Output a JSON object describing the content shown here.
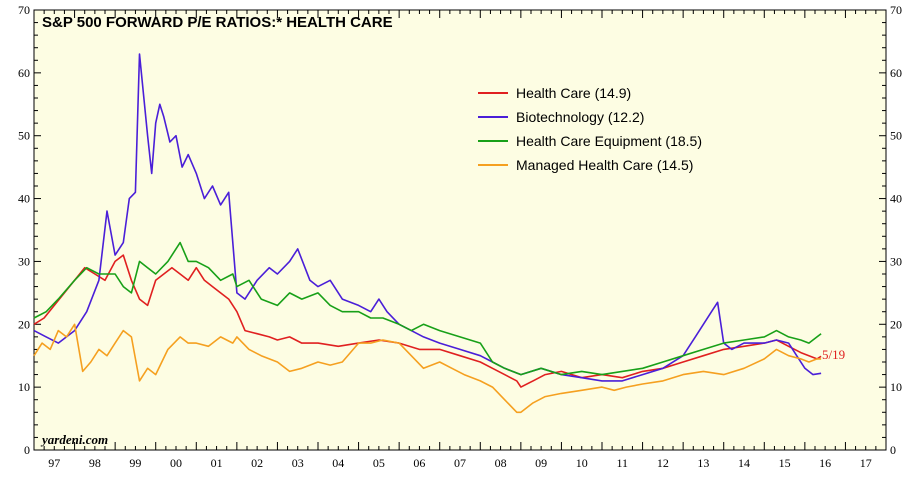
{
  "chart_data": {
    "type": "line",
    "title": "S&P 500 FORWARD P/E RATIOS:* HEALTH CARE",
    "source": "yardeni.com",
    "annotation": "5/19",
    "ylim": [
      0,
      70
    ],
    "yticks": [
      0,
      10,
      20,
      30,
      40,
      50,
      60,
      70
    ],
    "xlim": [
      1997.0,
      2018.0
    ],
    "x_tick_labels": [
      "97",
      "98",
      "99",
      "00",
      "01",
      "02",
      "03",
      "04",
      "05",
      "06",
      "07",
      "08",
      "09",
      "10",
      "11",
      "12",
      "13",
      "14",
      "15",
      "16",
      "17"
    ],
    "legend_position": "upper-right",
    "colors": {
      "background": "#fdfde3",
      "health_care": "#e02020",
      "biotechnology": "#4a1fd8",
      "equipment": "#18a018",
      "managed": "#f5a020"
    },
    "series": [
      {
        "name": "Health Care (14.9)",
        "color": "#e02020",
        "x": [
          1997.0,
          1997.25,
          1997.5,
          1997.75,
          1998.0,
          1998.25,
          1998.5,
          1998.75,
          1999.0,
          1999.2,
          1999.4,
          1999.6,
          1999.8,
          2000.0,
          2000.2,
          2000.4,
          2000.6,
          2000.8,
          2001.0,
          2001.2,
          2001.4,
          2001.6,
          2001.8,
          2002.0,
          2002.2,
          2002.5,
          2002.8,
          2003.0,
          2003.3,
          2003.6,
          2004.0,
          2004.5,
          2005.0,
          2005.5,
          2006.0,
          2006.5,
          2007.0,
          2007.5,
          2008.0,
          2008.3,
          2008.6,
          2008.9,
          2009.0,
          2009.3,
          2009.6,
          2010.0,
          2010.5,
          2011.0,
          2011.5,
          2012.0,
          2012.5,
          2013.0,
          2013.5,
          2014.0,
          2014.5,
          2015.0,
          2015.3,
          2015.6,
          2015.9,
          2016.1,
          2016.3,
          2016.4
        ],
        "y": [
          20,
          21,
          23,
          25,
          27,
          29,
          28,
          27,
          30,
          31,
          27,
          24,
          23,
          27,
          28,
          29,
          28,
          27,
          29,
          27,
          26,
          25,
          24,
          22,
          19,
          18.5,
          18,
          17.5,
          18,
          17,
          17,
          16.5,
          17,
          17.5,
          17,
          16,
          16,
          15,
          14,
          13,
          12,
          11,
          10,
          11,
          12,
          12.5,
          11.5,
          12,
          11.5,
          12.5,
          13,
          14,
          15,
          16,
          16.5,
          17,
          17.5,
          16.5,
          15.5,
          15,
          14.5,
          14.9
        ]
      },
      {
        "name": "Biotechnology (12.2)",
        "color": "#4a1fd8",
        "x": [
          1997.0,
          1997.3,
          1997.6,
          1998.0,
          1998.3,
          1998.6,
          1998.8,
          1999.0,
          1999.2,
          1999.35,
          1999.5,
          1999.6,
          1999.8,
          1999.9,
          2000.0,
          2000.1,
          2000.2,
          2000.35,
          2000.5,
          2000.65,
          2000.8,
          2001.0,
          2001.2,
          2001.4,
          2001.6,
          2001.8,
          2002.0,
          2002.2,
          2002.5,
          2002.8,
          2003.0,
          2003.3,
          2003.5,
          2003.8,
          2004.0,
          2004.3,
          2004.6,
          2005.0,
          2005.3,
          2005.5,
          2005.7,
          2006.0,
          2006.3,
          2006.6,
          2007.0,
          2007.5,
          2008.0,
          2008.3,
          2008.6,
          2009.0,
          2009.5,
          2010.0,
          2010.5,
          2011.0,
          2011.5,
          2012.0,
          2012.5,
          2013.0,
          2013.3,
          2013.5,
          2013.7,
          2013.85,
          2014.0,
          2014.2,
          2014.5,
          2015.0,
          2015.3,
          2015.6,
          2015.8,
          2016.0,
          2016.2,
          2016.4
        ],
        "y": [
          19,
          18,
          17,
          19,
          22,
          27,
          38,
          31,
          33,
          40,
          41,
          63,
          50,
          44,
          52,
          55,
          53,
          49,
          50,
          45,
          47,
          44,
          40,
          42,
          39,
          41,
          25,
          24,
          27,
          29,
          28,
          30,
          32,
          27,
          26,
          27,
          24,
          23,
          22,
          24,
          22,
          20,
          19,
          18,
          17,
          16,
          15,
          14,
          13,
          12,
          13,
          12,
          11.5,
          11,
          11,
          12,
          13,
          15,
          18,
          20,
          22,
          23.5,
          17,
          16,
          17,
          17,
          17.5,
          17,
          15,
          13,
          12,
          12.2
        ]
      },
      {
        "name": "Health Care Equipment (18.5)",
        "color": "#18a018",
        "x": [
          1997.0,
          1997.3,
          1997.6,
          1998.0,
          1998.3,
          1998.6,
          1999.0,
          1999.2,
          1999.4,
          1999.6,
          1999.8,
          2000.0,
          2000.3,
          2000.6,
          2000.8,
          2001.0,
          2001.3,
          2001.6,
          2001.9,
          2002.0,
          2002.3,
          2002.6,
          2003.0,
          2003.3,
          2003.6,
          2004.0,
          2004.3,
          2004.6,
          2005.0,
          2005.3,
          2005.6,
          2006.0,
          2006.3,
          2006.6,
          2007.0,
          2007.5,
          2008.0,
          2008.3,
          2008.6,
          2009.0,
          2009.5,
          2010.0,
          2010.5,
          2011.0,
          2011.5,
          2012.0,
          2012.5,
          2013.0,
          2013.5,
          2014.0,
          2014.5,
          2015.0,
          2015.3,
          2015.6,
          2015.9,
          2016.1,
          2016.3,
          2016.4
        ],
        "y": [
          21,
          22,
          24,
          27,
          29,
          28,
          28,
          26,
          25,
          30,
          29,
          28,
          30,
          33,
          30,
          30,
          29,
          27,
          28,
          26,
          27,
          24,
          23,
          25,
          24,
          25,
          23,
          22,
          22,
          21,
          21,
          20,
          19,
          20,
          19,
          18,
          17,
          14,
          13,
          12,
          13,
          12,
          12.5,
          12,
          12.5,
          13,
          14,
          15,
          16,
          17,
          17.5,
          18,
          19,
          18,
          17.5,
          17,
          18,
          18.5
        ]
      },
      {
        "name": "Managed Health Care (14.5)",
        "color": "#f5a020",
        "x": [
          1997.0,
          1997.2,
          1997.4,
          1997.6,
          1997.8,
          1998.0,
          1998.2,
          1998.4,
          1998.6,
          1998.8,
          1999.0,
          1999.2,
          1999.4,
          1999.6,
          1999.8,
          2000.0,
          2000.3,
          2000.6,
          2000.8,
          2001.0,
          2001.3,
          2001.6,
          2001.9,
          2002.0,
          2002.3,
          2002.6,
          2003.0,
          2003.3,
          2003.6,
          2004.0,
          2004.3,
          2004.6,
          2005.0,
          2005.3,
          2005.6,
          2006.0,
          2006.3,
          2006.6,
          2007.0,
          2007.3,
          2007.6,
          2008.0,
          2008.3,
          2008.6,
          2008.9,
          2009.0,
          2009.3,
          2009.6,
          2010.0,
          2010.5,
          2011.0,
          2011.3,
          2011.6,
          2012.0,
          2012.5,
          2013.0,
          2013.5,
          2014.0,
          2014.5,
          2015.0,
          2015.3,
          2015.6,
          2015.9,
          2016.1,
          2016.3,
          2016.4
        ],
        "y": [
          15,
          17,
          16,
          19,
          18,
          20,
          12.5,
          14,
          16,
          15,
          17,
          19,
          18,
          11,
          13,
          12,
          16,
          18,
          17,
          17,
          16.5,
          18,
          17,
          18,
          16,
          15,
          14,
          12.5,
          13,
          14,
          13.5,
          14,
          17,
          17,
          17.5,
          17,
          15,
          13,
          14,
          13,
          12,
          11,
          10,
          8,
          6,
          6,
          7.5,
          8.5,
          9,
          9.5,
          10,
          9.5,
          10,
          10.5,
          11,
          12,
          12.5,
          12,
          13,
          14.5,
          16,
          15,
          14.5,
          14,
          14.5,
          14.5
        ]
      }
    ],
    "legend": [
      "Health Care (14.9)",
      "Biotechnology (12.2)",
      "Health Care Equipment (18.5)",
      "Managed Health Care (14.5)"
    ]
  }
}
